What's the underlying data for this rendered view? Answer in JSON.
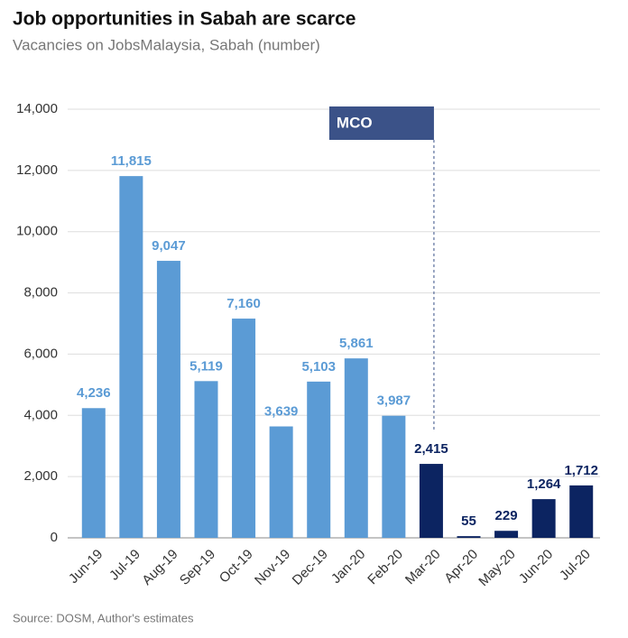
{
  "chart_data": {
    "type": "bar",
    "title": "Job opportunities in Sabah are scarce",
    "subtitle": "Vacancies on JobsMalaysia, Sabah (number)",
    "source": "Source: DOSM, Author's estimates",
    "categories": [
      "Jun-19",
      "Jul-19",
      "Aug-19",
      "Sep-19",
      "Oct-19",
      "Nov-19",
      "Dec-19",
      "Jan-20",
      "Feb-20",
      "Mar-20",
      "Apr-20",
      "May-20",
      "Jun-20",
      "Jul-20"
    ],
    "values": [
      4236,
      11815,
      9047,
      5119,
      7160,
      3639,
      5103,
      5861,
      3987,
      2415,
      55,
      229,
      1264,
      1712
    ],
    "value_labels": [
      "4,236",
      "11,815",
      "9,047",
      "5,119",
      "7,160",
      "3,639",
      "5,103",
      "5,861",
      "3,987",
      "2,415",
      "55",
      "229",
      "1,264",
      "1,712"
    ],
    "colors": [
      "#5b9bd5",
      "#5b9bd5",
      "#5b9bd5",
      "#5b9bd5",
      "#5b9bd5",
      "#5b9bd5",
      "#5b9bd5",
      "#5b9bd5",
      "#5b9bd5",
      "#0c2461",
      "#0c2461",
      "#0c2461",
      "#0c2461",
      "#0c2461"
    ],
    "ylim": [
      0,
      14000
    ],
    "yticks": [
      {
        "value": 0,
        "label": "0"
      },
      {
        "value": 2000,
        "label": "2,000"
      },
      {
        "value": 4000,
        "label": "4,000"
      },
      {
        "value": 6000,
        "label": "6,000"
      },
      {
        "value": 8000,
        "label": "8,000"
      },
      {
        "value": 10000,
        "label": "10,000"
      },
      {
        "value": 12000,
        "label": "12,000"
      },
      {
        "value": 14000,
        "label": "14,000"
      }
    ],
    "grid": true,
    "annotation": {
      "text": "MCO",
      "at": "Mar-20"
    }
  }
}
